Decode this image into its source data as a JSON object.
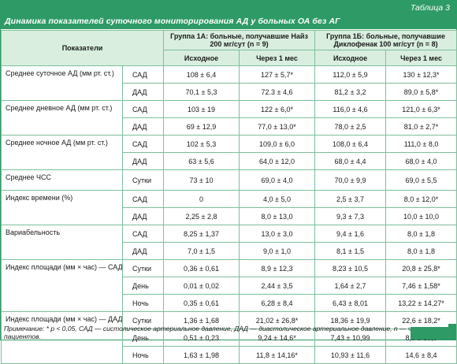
{
  "table_label": "Таблица 3",
  "title": "Динамика показателей суточного мониторирования АД у больных ОА без АГ",
  "headers": {
    "indicators": "Показатели",
    "group1": "Группа 1А: больные, получавшие Найз 200 мг/сут (n = 9)",
    "group2": "Группа 1Б: больные, получавшие Диклофенак 100 мг/сут (n = 8)",
    "initial": "Исходное",
    "after": "Через 1 мес"
  },
  "rows": [
    {
      "indicator": "Среднее суточное АД (мм рт. ст.)",
      "sub": "САД",
      "g1_initial": "108 ± 6,4",
      "g1_after": "127 ± 5,7*",
      "g2_initial": "112,0 ± 5,9",
      "g2_after": "130 ± 12,3*"
    },
    {
      "indicator": "",
      "sub": "ДАД",
      "g1_initial": "70,1 ± 5,3",
      "g1_after": "72.3 ± 4,6",
      "g2_initial": "81,2 ± 3,2",
      "g2_after": "89,0 ± 5,8*"
    },
    {
      "indicator": "Среднее дневное АД (мм рт. ст.)",
      "sub": "САД",
      "g1_initial": "103 ± 19",
      "g1_after": "122 ± 6,0*",
      "g2_initial": "116,0 ± 4,6",
      "g2_after": "121,0 ± 6,3*"
    },
    {
      "indicator": "",
      "sub": "ДАД",
      "g1_initial": "69 ± 12,9",
      "g1_after": "77,0 ± 13,0*",
      "g2_initial": "78,0 ± 2,5",
      "g2_after": "81,0 ± 2,7*"
    },
    {
      "indicator": "Среднее ночное АД (мм рт. ст.)",
      "sub": "САД",
      "g1_initial": "102 ± 5,3",
      "g1_after": "109,0 ± 6,0",
      "g2_initial": "108,0 ± 6,4",
      "g2_after": "111,0 ± 8,0"
    },
    {
      "indicator": "",
      "sub": "ДАД",
      "g1_initial": "63 ± 5,6",
      "g1_after": "64,0 ± 12,0",
      "g2_initial": "68,0 ± 4,4",
      "g2_after": "68,0 ± 4,0"
    },
    {
      "indicator": "Среднее ЧСС",
      "sub": "Сутки",
      "g1_initial": "73 ± 10",
      "g1_after": "69,0 ± 4,0",
      "g2_initial": "70,0 ± 9,9",
      "g2_after": "69,0 ± 5,5"
    },
    {
      "indicator": "Индекс времени (%)",
      "sub": "САД",
      "g1_initial": "0",
      "g1_after": "4,0 ± 5,0",
      "g2_initial": "2,5 ± 3,7",
      "g2_after": "8,0 ± 12,0*"
    },
    {
      "indicator": "",
      "sub": "ДАД",
      "g1_initial": "2,25 ± 2,8",
      "g1_after": "8,0 ± 13,0",
      "g2_initial": "9,3 ± 7,3",
      "g2_after": "10,0 ± 10,0"
    },
    {
      "indicator": "Вариабельность",
      "sub": "САД",
      "g1_initial": "8,25 ± 1,37",
      "g1_after": "13,0 ± 3,0",
      "g2_initial": "9,4 ± 1,6",
      "g2_after": "8,0 ± 1,8"
    },
    {
      "indicator": "",
      "sub": "ДАД",
      "g1_initial": "7,0 ± 1,5",
      "g1_after": "9,0 ± 1,0",
      "g2_initial": "8,1 ± 1,5",
      "g2_after": "8,0 ± 1,8"
    },
    {
      "indicator": "Индекс площади (мм × час) — САД",
      "sub": "Сутки",
      "g1_initial": "0,36 ± 0,61",
      "g1_after": "8,9 ± 12,3",
      "g2_initial": "8,23 ± 10,5",
      "g2_after": "20,8 ± 25,8*"
    },
    {
      "indicator": "",
      "sub": "День",
      "g1_initial": "0,01 ± 0,02",
      "g1_after": "2,44 ± 3,5",
      "g2_initial": "1,64 ± 2,7",
      "g2_after": "7,46 ± 1,58*"
    },
    {
      "indicator": "",
      "sub": "Ночь",
      "g1_initial": "0,35 ± 0,61",
      "g1_after": "6,28 ± 8,4",
      "g2_initial": "6,43 ± 8,01",
      "g2_after": "13,22 ± 14,27*"
    },
    {
      "indicator": "Индекс площади (мм × час) — ДАД",
      "sub": "Сутки",
      "g1_initial": "1,36 ± 1,68",
      "g1_after": "21,02 ± 26,8*",
      "g2_initial": "18,36 ± 19,9",
      "g2_after": "22,6 ± 18,2*"
    },
    {
      "indicator": "",
      "sub": "День",
      "g1_initial": "0,51 ± 0,23",
      "g1_after": "9,24 ± 14,6*",
      "g2_initial": "7,43 ± 10,99",
      "g2_after": "8,0 ± 10,9"
    },
    {
      "indicator": "",
      "sub": "Ночь",
      "g1_initial": "1,63 ± 1,98",
      "g1_after": "11,8 ± 14,16*",
      "g2_initial": "10,93 ± 11,6",
      "g2_after": "14,6 ± 8,4"
    }
  ],
  "note": "Примечание: * p < 0,05, САД — систолическое артериальное давление, ДАД — диастолическое артериальное давление, n — число пациентов.",
  "colors": {
    "accent": "#2e9a66",
    "header_fill": "#d9eede",
    "grid": "#7cbf9b"
  }
}
